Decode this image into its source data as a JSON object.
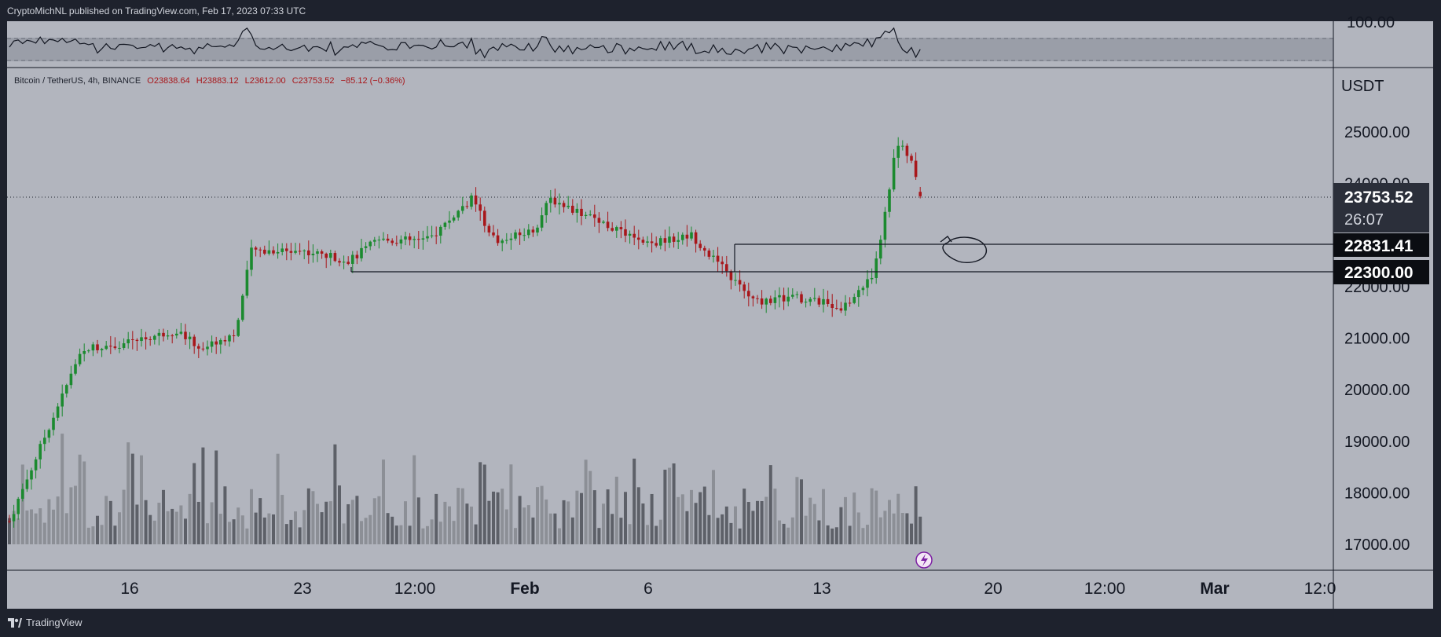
{
  "header": {
    "published_text": "CryptoMichNL published on TradingView.com, Feb 17, 2023 07:33 UTC"
  },
  "legend": {
    "symbol": "Bitcoin / TetherUS, 4h, BINANCE",
    "open": "O23838.64",
    "high": "H23883.12",
    "low": "L23612.00",
    "close": "C23753.52",
    "change": "−85.12 (−0.36%)"
  },
  "footer": {
    "brand": "TradingView"
  },
  "price_axis": {
    "unit": "USDT",
    "oscillator_label": "100.00",
    "ticks": [
      "25000.00",
      "24000.00",
      "22000.00",
      "21000.00",
      "20000.00",
      "19000.00",
      "18000.00",
      "17000.00"
    ],
    "last_price": "23753.52",
    "countdown": "26:07",
    "level_upper": "22831.41",
    "level_lower": "22300.00"
  },
  "time_axis": {
    "ticks": [
      "16",
      "23",
      "12:00",
      "Feb",
      "6",
      "13",
      "20",
      "12:00",
      "Mar",
      "12:0"
    ]
  },
  "colors": {
    "up": "#1b8a2f",
    "down": "#a8171b",
    "background": "#b2b5be",
    "dark": "#1e222d"
  },
  "chart_data": {
    "type": "candlestick",
    "interval": "4h",
    "x_range": [
      "Jan 13, 2023",
      "Feb 17, 2023"
    ],
    "y_axis_ticks": [
      17000,
      18000,
      19000,
      20000,
      21000,
      22000,
      24000,
      25000
    ],
    "anchors": [
      {
        "date": "Jan 13",
        "price": 17450
      },
      {
        "date": "Jan 14",
        "price": 19200
      },
      {
        "date": "Jan 14 12:00",
        "price": 20800
      },
      {
        "date": "Jan 16",
        "price": 20900
      },
      {
        "date": "Jan 18",
        "price": 21150
      },
      {
        "date": "Jan 19",
        "price": 20800
      },
      {
        "date": "Jan 20",
        "price": 21100
      },
      {
        "date": "Jan 21",
        "price": 22700
      },
      {
        "date": "Jan 23",
        "price": 22700
      },
      {
        "date": "Jan 25",
        "price": 22500
      },
      {
        "date": "Jan 25 12:00",
        "price": 22900
      },
      {
        "date": "Jan 27",
        "price": 22900
      },
      {
        "date": "Jan 29",
        "price": 23700
      },
      {
        "date": "Jan 30",
        "price": 22850
      },
      {
        "date": "Feb 1",
        "price": 23100
      },
      {
        "date": "Feb 2",
        "price": 23700
      },
      {
        "date": "Feb 4",
        "price": 23300
      },
      {
        "date": "Feb 6",
        "price": 22800
      },
      {
        "date": "Feb 8",
        "price": 23000
      },
      {
        "date": "Feb 9",
        "price": 22100
      },
      {
        "date": "Feb 10",
        "price": 21700
      },
      {
        "date": "Feb 12",
        "price": 21800
      },
      {
        "date": "Feb 13",
        "price": 21600
      },
      {
        "date": "Feb 14",
        "price": 22200
      },
      {
        "date": "Feb 15",
        "price": 23500
      },
      {
        "date": "Feb 16",
        "price": 24800
      },
      {
        "date": "Feb 16 12:00",
        "price": 24500
      },
      {
        "date": "Feb 17",
        "price": 23753.52
      }
    ],
    "last": {
      "open": 23838.64,
      "high": 23883.12,
      "low": 23612.0,
      "close": 23753.52,
      "change": -85.12,
      "change_pct": -0.36
    },
    "horizontal_levels": [
      22831.41,
      22300.0
    ],
    "annotations": [
      "hand-drawn circle with arrow near 22831.41 level"
    ]
  }
}
